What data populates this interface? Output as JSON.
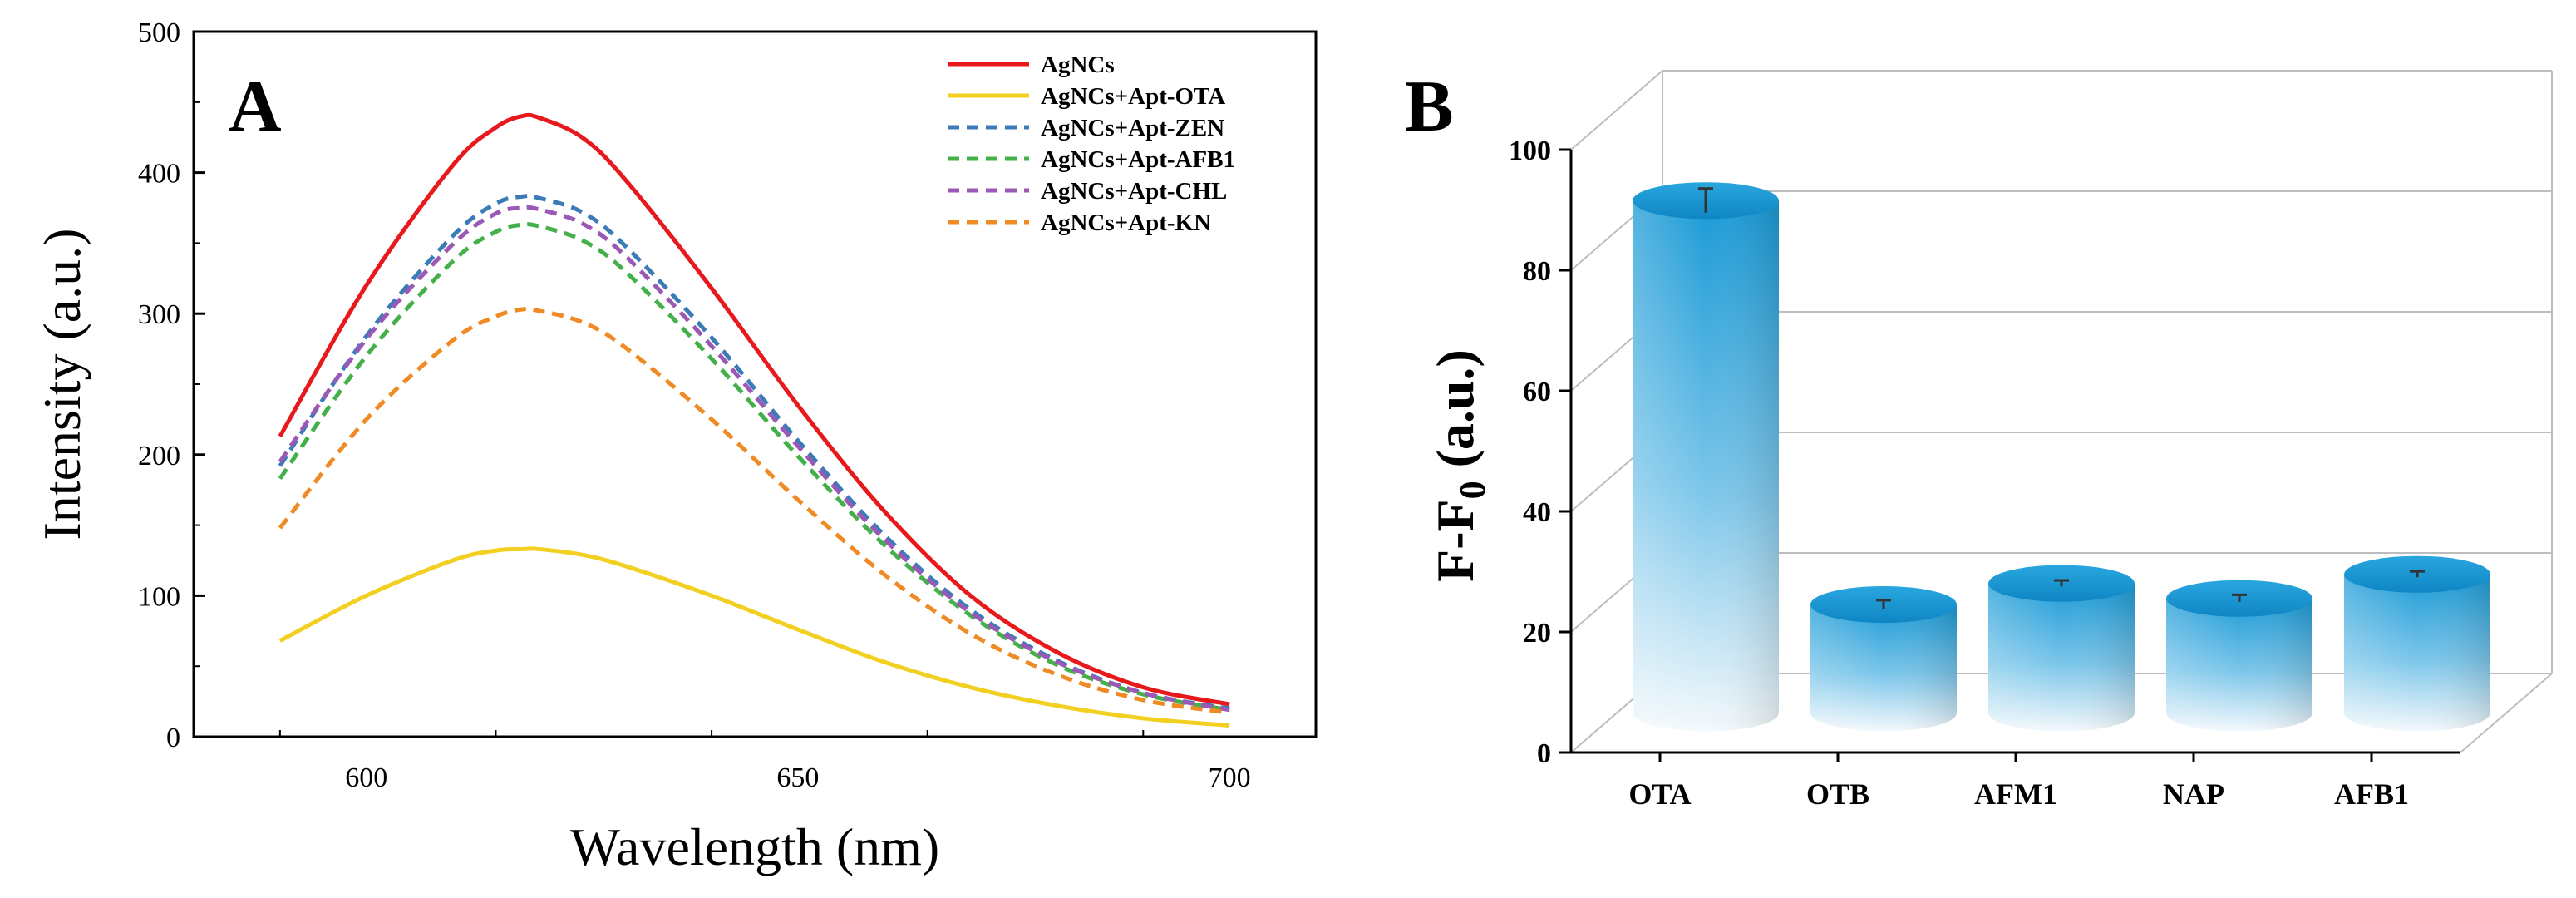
{
  "chart_data": [
    {
      "panel": "A",
      "type": "line",
      "title": "",
      "xlabel": "Wavelength (nm)",
      "ylabel": "Intensity (a.u.)",
      "xlim": [
        580,
        710
      ],
      "ylim": [
        0,
        500
      ],
      "xticks": [
        600,
        650,
        700
      ],
      "yticks": [
        0,
        100,
        200,
        300,
        400,
        500
      ],
      "grid": false,
      "legend_position": "top-right",
      "x": [
        590,
        600,
        610,
        615,
        618,
        620,
        625,
        630,
        640,
        650,
        660,
        670,
        680,
        690,
        700
      ],
      "series": [
        {
          "name": "AgNCs",
          "color": "#e8191c",
          "style": "solid",
          "values": [
            213,
            320,
            405,
            432,
            440,
            439,
            425,
            395,
            318,
            235,
            160,
            100,
            60,
            35,
            23
          ]
        },
        {
          "name": "AgNCs+Apt-OTA",
          "color": "#f2d022",
          "style": "solid",
          "values": [
            68,
            100,
            125,
            132,
            133,
            133,
            129,
            121,
            100,
            76,
            53,
            35,
            22,
            13,
            8
          ]
        },
        {
          "name": "AgNCs+Apt-ZEN",
          "color": "#3b7cb8",
          "style": "dashed",
          "values": [
            192,
            284,
            355,
            378,
            383,
            382,
            372,
            348,
            283,
            210,
            143,
            90,
            54,
            31,
            20
          ]
        },
        {
          "name": "AgNCs+Apt-AFB1",
          "color": "#43b04a",
          "style": "dashed",
          "values": [
            183,
            270,
            337,
            358,
            363,
            362,
            352,
            330,
            268,
            199,
            136,
            86,
            51,
            30,
            19
          ]
        },
        {
          "name": "AgNCs+Apt-CHL",
          "color": "#9b59b6",
          "style": "dashed",
          "values": [
            195,
            282,
            349,
            371,
            375,
            374,
            364,
            341,
            277,
            206,
            140,
            88,
            53,
            31,
            19
          ]
        },
        {
          "name": "AgNCs+Apt-KN",
          "color": "#f08a24",
          "style": "dashed",
          "values": [
            148,
            225,
            281,
            298,
            303,
            302,
            294,
            276,
            225,
            168,
            115,
            73,
            44,
            26,
            17
          ]
        }
      ]
    },
    {
      "panel": "B",
      "type": "bar",
      "title": "",
      "xlabel": "",
      "ylabel_main": "F-F",
      "ylabel_sub": "0",
      "ylabel_tail": " (a.u.)",
      "ylim": [
        0,
        100
      ],
      "yticks": [
        0,
        20,
        40,
        60,
        80,
        100
      ],
      "categories": [
        "OTA",
        "OTB",
        "AFM1",
        "NAP",
        "AFB1"
      ],
      "values": [
        85,
        18,
        21.5,
        19,
        23
      ],
      "errors": [
        2,
        0.7,
        0.5,
        0.6,
        0.5
      ],
      "bar_color": "#1a9ad6",
      "style": "3d-cylinder"
    }
  ]
}
